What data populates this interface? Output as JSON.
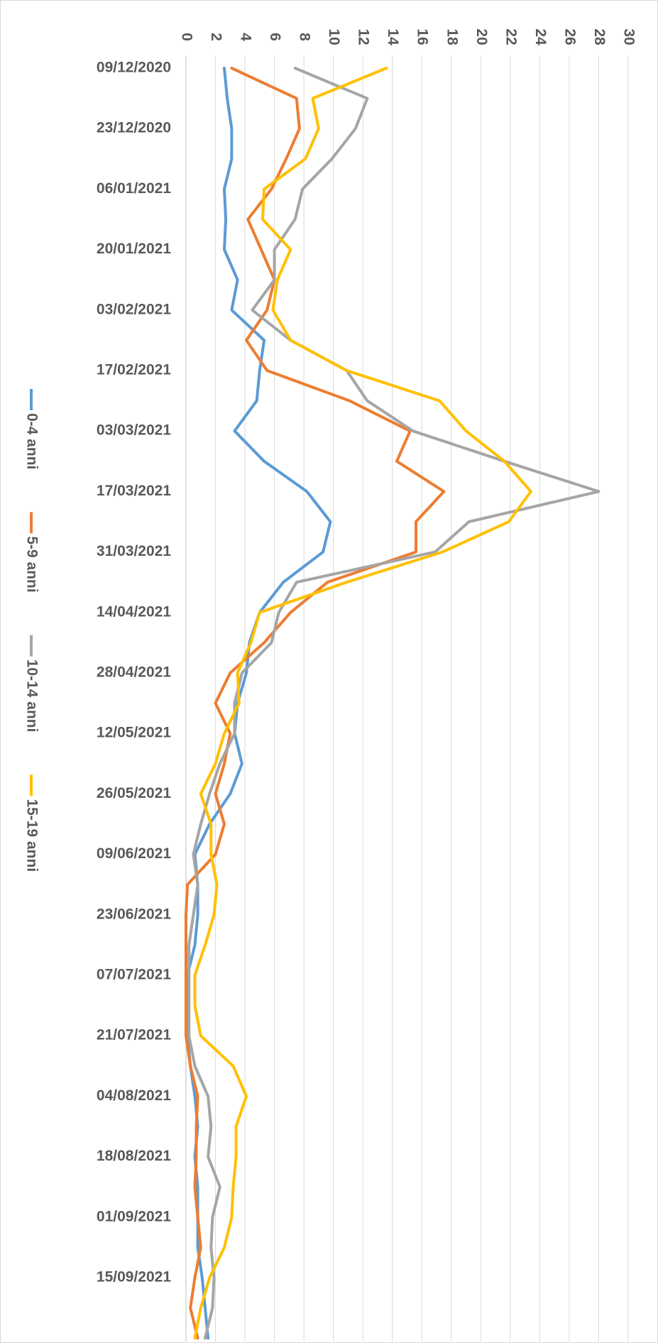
{
  "chart_data": {
    "type": "line",
    "categories": [
      "09/12/2020",
      null,
      "23/12/2020",
      null,
      "06/01/2021",
      null,
      "20/01/2021",
      null,
      "03/02/2021",
      null,
      "17/02/2021",
      null,
      "03/03/2021",
      null,
      "17/03/2021",
      null,
      "31/03/2021",
      null,
      "14/04/2021",
      null,
      "28/04/2021",
      null,
      "12/05/2021",
      null,
      "26/05/2021",
      null,
      "09/06/2021",
      null,
      "23/06/2021",
      null,
      "07/07/2021",
      null,
      "21/07/2021",
      null,
      "04/08/2021",
      null,
      "18/08/2021",
      null,
      "01/09/2021",
      null,
      "15/09/2021",
      null,
      null
    ],
    "series": [
      {
        "name": "0-4 anni",
        "color": "#5b9bd5",
        "values": [
          2.6,
          2.8,
          3.1,
          3.1,
          2.6,
          2.7,
          2.6,
          3.5,
          3.1,
          5.3,
          5.0,
          4.8,
          3.3,
          5.3,
          8.2,
          9.8,
          9.3,
          6.6,
          5.0,
          4.3,
          4.1,
          3.5,
          3.3,
          3.8,
          3.0,
          1.6,
          0.6,
          0.8,
          0.8,
          0.6,
          0.1,
          0.1,
          0.1,
          0.3,
          0.6,
          0.8,
          0.6,
          0.8,
          0.8,
          0.8,
          1.1,
          1.3,
          1.5
        ]
      },
      {
        "name": "5-9 anni",
        "color": "#ed7d31",
        "values": [
          3.1,
          7.5,
          7.7,
          6.8,
          5.8,
          4.2,
          5.1,
          6.0,
          5.5,
          4.1,
          5.5,
          11.1,
          15.2,
          14.3,
          17.5,
          15.6,
          15.6,
          9.6,
          7.1,
          5.3,
          3.0,
          2.0,
          3.0,
          2.6,
          2.0,
          2.6,
          2.0,
          0.1,
          0,
          0,
          0,
          0,
          0,
          0.3,
          0.8,
          0.7,
          0.7,
          0.6,
          0.8,
          1.0,
          0.6,
          0.3,
          0.8
        ]
      },
      {
        "name": "10-14 anni",
        "color": "#a5a5a5",
        "values": [
          7.4,
          12.3,
          11.5,
          9.9,
          7.9,
          7.4,
          6.0,
          6.0,
          4.5,
          7.1,
          10.9,
          12.3,
          15.4,
          21.6,
          28.0,
          19.2,
          16.9,
          7.5,
          6.3,
          5.8,
          3.8,
          3.3,
          3.3,
          2.3,
          1.6,
          1.0,
          0.5,
          0.8,
          0.5,
          0.2,
          0.2,
          0.2,
          0.2,
          0.6,
          1.5,
          1.7,
          1.5,
          2.3,
          1.8,
          1.7,
          1.9,
          1.8,
          1.3
        ]
      },
      {
        "name": "15-19 anni",
        "color": "#ffc000",
        "values": [
          13.6,
          8.6,
          9.0,
          8.1,
          5.3,
          5.2,
          7.1,
          6.2,
          5.9,
          7.1,
          10.9,
          17.2,
          19.0,
          21.6,
          23.4,
          21.9,
          17.4,
          10.9,
          5.0,
          4.4,
          3.5,
          3.6,
          2.6,
          2.0,
          1.0,
          1.7,
          1.7,
          2.1,
          1.9,
          1.3,
          0.6,
          0.6,
          1.0,
          3.2,
          4.1,
          3.4,
          3.4,
          3.2,
          3.1,
          2.6,
          1.6,
          1.0,
          0.6
        ]
      }
    ],
    "ylim": [
      0,
      30
    ],
    "yticks": [
      0,
      2,
      4,
      6,
      8,
      10,
      12,
      14,
      16,
      18,
      20,
      22,
      24,
      26,
      28,
      30
    ],
    "grid": true,
    "legend": "left"
  }
}
